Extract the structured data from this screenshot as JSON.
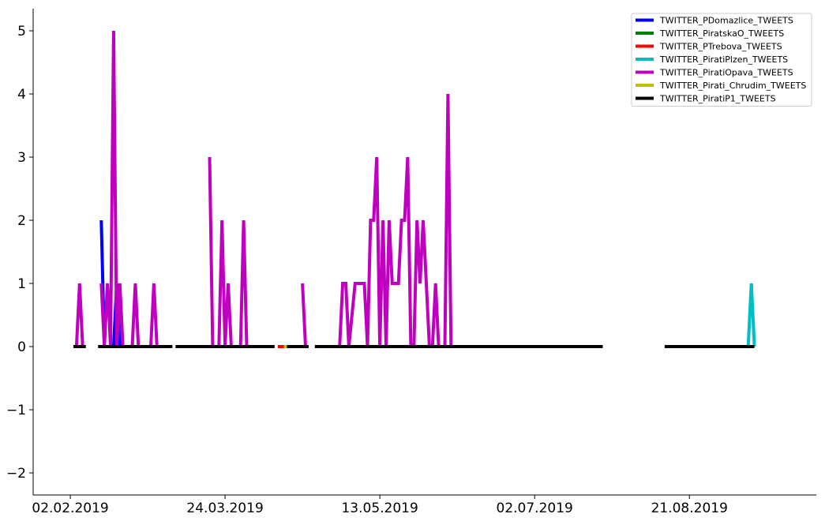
{
  "chart_data": {
    "type": "line",
    "title": "",
    "xlabel": "",
    "ylabel": "",
    "x_ticks": [
      "02.02.2019",
      "24.03.2019",
      "13.05.2019",
      "02.07.2019",
      "21.08.2019"
    ],
    "x_tick_dates": [
      "2019-02-02",
      "2019-03-24",
      "2019-05-13",
      "2019-07-02",
      "2019-08-21"
    ],
    "xlim": [
      "2019-01-21",
      "2019-10-01"
    ],
    "y_ticks": [
      -2,
      -1,
      0,
      1,
      2,
      3,
      4,
      5
    ],
    "y_tick_labels": [
      "−2",
      "−1",
      "0",
      "1",
      "2",
      "3",
      "4",
      "5"
    ],
    "ylim": [
      -2.35,
      5.35
    ],
    "grid": false,
    "legend_position": "top-right",
    "series": [
      {
        "name": "TWITTER_PDomazlice_TWEETS",
        "color": "#0000ff",
        "segments": [
          [
            [
              "2019-02-12",
              2
            ],
            [
              "2019-02-13",
              0
            ],
            [
              "2019-02-16",
              0
            ],
            [
              "2019-02-17",
              1
            ],
            [
              "2019-02-18",
              0
            ],
            [
              "2019-02-20",
              0
            ]
          ],
          [
            [
              "2019-03-26",
              0
            ],
            [
              "2019-03-27",
              0
            ]
          ],
          [
            [
              "2019-04-28",
              0
            ],
            [
              "2019-04-29",
              0
            ]
          ]
        ]
      },
      {
        "name": "TWITTER_PiratskaO_TWEETS",
        "color": "#008000",
        "segments": [
          [
            [
              "2019-02-15",
              0
            ],
            [
              "2019-02-16",
              0
            ]
          ],
          [
            [
              "2019-05-10",
              0
            ],
            [
              "2019-05-18",
              0
            ]
          ]
        ]
      },
      {
        "name": "TWITTER_PTrebova_TWEETS",
        "color": "#ff0000",
        "segments": [
          [
            [
              "2019-03-10",
              0
            ],
            [
              "2019-03-11",
              0
            ]
          ],
          [
            [
              "2019-04-03",
              0
            ],
            [
              "2019-04-05",
              0
            ]
          ],
          [
            [
              "2019-04-10",
              0
            ],
            [
              "2019-04-13",
              0
            ]
          ]
        ]
      },
      {
        "name": "TWITTER_PiratiPlzen_TWEETS",
        "color": "#00bfbf",
        "segments": [
          [
            [
              "2019-02-19",
              0
            ],
            [
              "2019-02-21",
              0
            ]
          ],
          [
            [
              "2019-03-25",
              0
            ],
            [
              "2019-03-26",
              0
            ]
          ],
          [
            [
              "2019-09-09",
              0
            ],
            [
              "2019-09-10",
              1
            ],
            [
              "2019-09-11",
              0
            ]
          ]
        ]
      },
      {
        "name": "TWITTER_PiratiOpava_TWEETS",
        "color": "#bf00bf",
        "segments": [
          [
            [
              "2019-02-04",
              0
            ],
            [
              "2019-02-05",
              1
            ],
            [
              "2019-02-06",
              0
            ]
          ],
          [
            [
              "2019-02-12",
              1
            ],
            [
              "2019-02-13",
              0
            ],
            [
              "2019-02-14",
              1
            ],
            [
              "2019-02-15",
              0
            ],
            [
              "2019-02-16",
              5
            ],
            [
              "2019-02-17",
              0
            ],
            [
              "2019-02-18",
              1
            ],
            [
              "2019-02-19",
              0
            ]
          ],
          [
            [
              "2019-02-22",
              0
            ],
            [
              "2019-02-23",
              1
            ],
            [
              "2019-02-24",
              0
            ]
          ],
          [
            [
              "2019-02-28",
              0
            ],
            [
              "2019-03-01",
              1
            ],
            [
              "2019-03-02",
              0
            ]
          ],
          [
            [
              "2019-03-19",
              3
            ],
            [
              "2019-03-20",
              0
            ]
          ],
          [
            [
              "2019-03-22",
              0
            ],
            [
              "2019-03-23",
              2
            ],
            [
              "2019-03-24",
              0
            ],
            [
              "2019-03-25",
              1
            ],
            [
              "2019-03-26",
              0
            ]
          ],
          [
            [
              "2019-03-29",
              0
            ],
            [
              "2019-03-30",
              2
            ],
            [
              "2019-03-31",
              0
            ]
          ],
          [
            [
              "2019-04-18",
              1
            ],
            [
              "2019-04-19",
              0
            ]
          ],
          [
            [
              "2019-04-30",
              0
            ],
            [
              "2019-05-01",
              1
            ],
            [
              "2019-05-02",
              1
            ],
            [
              "2019-05-03",
              0
            ],
            [
              "2019-05-05",
              1
            ],
            [
              "2019-05-08",
              1
            ],
            [
              "2019-05-09",
              0
            ],
            [
              "2019-05-10",
              2
            ],
            [
              "2019-05-11",
              2
            ],
            [
              "2019-05-12",
              3
            ],
            [
              "2019-05-13",
              0
            ],
            [
              "2019-05-14",
              2
            ],
            [
              "2019-05-15",
              0
            ],
            [
              "2019-05-16",
              2
            ],
            [
              "2019-05-17",
              1
            ],
            [
              "2019-05-19",
              1
            ],
            [
              "2019-05-20",
              2
            ],
            [
              "2019-05-21",
              2
            ],
            [
              "2019-05-22",
              3
            ],
            [
              "2019-05-23",
              0
            ],
            [
              "2019-05-24",
              0
            ],
            [
              "2019-05-25",
              2
            ],
            [
              "2019-05-26",
              1
            ],
            [
              "2019-05-27",
              2
            ],
            [
              "2019-05-28",
              1
            ],
            [
              "2019-05-29",
              0
            ],
            [
              "2019-05-30",
              0
            ],
            [
              "2019-05-31",
              1
            ],
            [
              "2019-06-01",
              0
            ],
            [
              "2019-06-02",
              0
            ],
            [
              "2019-06-03",
              0
            ],
            [
              "2019-06-04",
              4
            ],
            [
              "2019-06-05",
              0
            ]
          ],
          [
            [
              "2019-06-25",
              0
            ],
            [
              "2019-06-26",
              0
            ]
          ]
        ]
      },
      {
        "name": "TWITTER_Pirati_Chrudim_TWEETS",
        "color": "#bfbf00",
        "segments": [
          [
            [
              "2019-02-14",
              0
            ],
            [
              "2019-02-15",
              0
            ]
          ],
          [
            [
              "2019-03-03",
              0
            ],
            [
              "2019-03-04",
              0
            ]
          ],
          [
            [
              "2019-03-14",
              0
            ],
            [
              "2019-03-17",
              0
            ]
          ],
          [
            [
              "2019-03-21",
              0
            ],
            [
              "2019-03-22",
              0
            ]
          ],
          [
            [
              "2019-04-12",
              0
            ],
            [
              "2019-04-16",
              0
            ]
          ],
          [
            [
              "2019-04-23",
              0
            ],
            [
              "2019-04-25",
              0
            ]
          ]
        ]
      },
      {
        "name": "TWITTER_PiratiP1_TWEETS",
        "color": "#000000",
        "segments": [
          [
            [
              "2019-02-03",
              0
            ],
            [
              "2019-02-07",
              0
            ]
          ],
          [
            [
              "2019-02-11",
              0
            ],
            [
              "2019-03-07",
              0
            ]
          ],
          [
            [
              "2019-03-08",
              0
            ],
            [
              "2019-04-09",
              0
            ]
          ],
          [
            [
              "2019-04-13",
              0
            ],
            [
              "2019-04-20",
              0
            ]
          ],
          [
            [
              "2019-04-22",
              0
            ],
            [
              "2019-07-24",
              0
            ]
          ],
          [
            [
              "2019-08-13",
              0
            ],
            [
              "2019-09-11",
              0
            ]
          ]
        ]
      }
    ]
  }
}
